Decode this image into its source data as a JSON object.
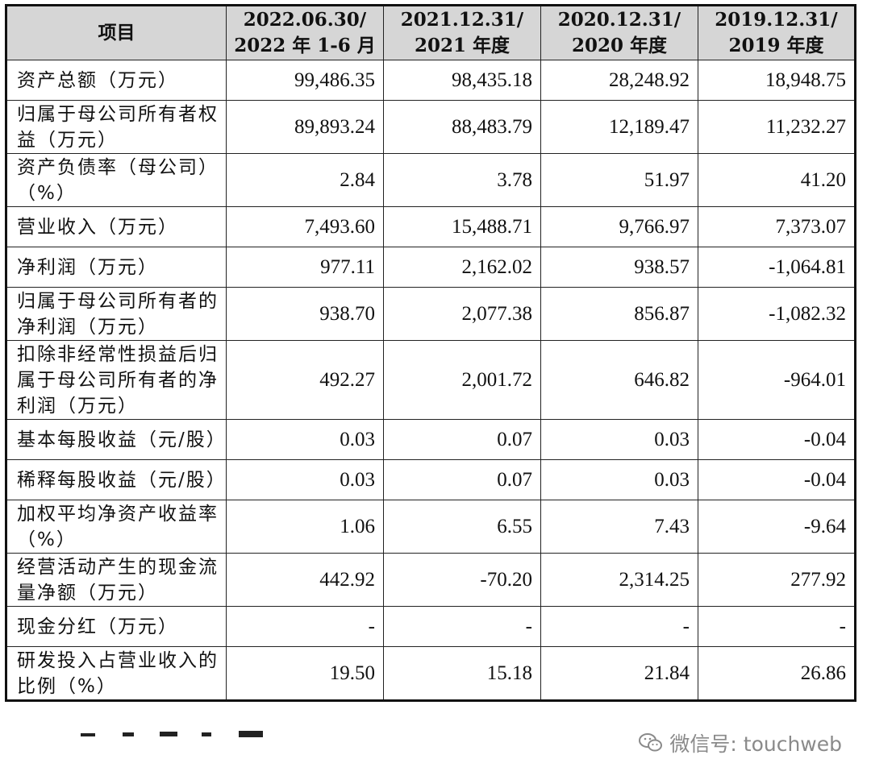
{
  "table": {
    "headers": [
      {
        "line1": "项目",
        "line2": ""
      },
      {
        "line1": "2022.06.30/",
        "line2": "2022 年 1-6 月"
      },
      {
        "line1": "2021.12.31/",
        "line2": "2021 年度"
      },
      {
        "line1": "2020.12.31/",
        "line2": "2020 年度"
      },
      {
        "line1": "2019.12.31/",
        "line2": "2019 年度"
      }
    ],
    "rows": [
      {
        "label": "资产总额（万元）",
        "values": [
          "99,486.35",
          "98,435.18",
          "28,248.92",
          "18,948.75"
        ]
      },
      {
        "label": "归属于母公司所有者权益（万元）",
        "values": [
          "89,893.24",
          "88,483.79",
          "12,189.47",
          "11,232.27"
        ]
      },
      {
        "label": "资产负债率（母公司）（%）",
        "values": [
          "2.84",
          "3.78",
          "51.97",
          "41.20"
        ]
      },
      {
        "label": "营业收入（万元）",
        "values": [
          "7,493.60",
          "15,488.71",
          "9,766.97",
          "7,373.07"
        ]
      },
      {
        "label": "净利润（万元）",
        "values": [
          "977.11",
          "2,162.02",
          "938.57",
          "-1,064.81"
        ]
      },
      {
        "label": "归属于母公司所有者的净利润（万元）",
        "values": [
          "938.70",
          "2,077.38",
          "856.87",
          "-1,082.32"
        ]
      },
      {
        "label": "扣除非经常性损益后归属于母公司所有者的净利润（万元）",
        "values": [
          "492.27",
          "2,001.72",
          "646.82",
          "-964.01"
        ]
      },
      {
        "label": "基本每股收益（元/股）",
        "values": [
          "0.03",
          "0.07",
          "0.03",
          "-0.04"
        ]
      },
      {
        "label": "稀释每股收益（元/股）",
        "values": [
          "0.03",
          "0.07",
          "0.03",
          "-0.04"
        ]
      },
      {
        "label": "加权平均净资产收益率（%）",
        "values": [
          "1.06",
          "6.55",
          "7.43",
          "-9.64"
        ]
      },
      {
        "label": "经营活动产生的现金流量净额（万元）",
        "values": [
          "442.92",
          "-70.20",
          "2,314.25",
          "277.92"
        ]
      },
      {
        "label": "现金分红（万元）",
        "values": [
          "-",
          "-",
          "-",
          "-"
        ]
      },
      {
        "label": "研发投入占营业收入的比例（%）",
        "values": [
          "19.50",
          "15.18",
          "21.84",
          "26.86"
        ]
      }
    ]
  },
  "watermark": {
    "text": "微信号: touchweb",
    "icon": "wechat-icon"
  }
}
